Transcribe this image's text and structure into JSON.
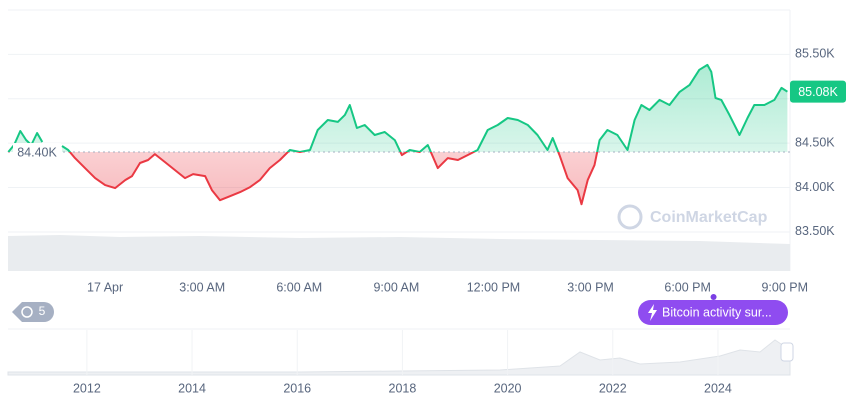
{
  "chart_data": {
    "type": "line",
    "x": [
      -2.99,
      -2.81,
      -2.62,
      -2.44,
      -2.28,
      -2.1,
      -1.94,
      -1.6,
      -1.33,
      -1.14,
      -0.93,
      -0.62,
      -0.31,
      0,
      0.31,
      0.62,
      0.83,
      1.08,
      1.33,
      1.54,
      1.85,
      2.16,
      2.47,
      2.72,
      3.09,
      3.3,
      3.55,
      3.86,
      4.17,
      4.48,
      4.78,
      5.09,
      5.4,
      5.71,
      6.02,
      6.33,
      6.57,
      6.88,
      7.19,
      7.41,
      7.56,
      7.78,
      8.02,
      8.33,
      8.64,
      8.95,
      9.17,
      9.41,
      9.72,
      9.97,
      10.28,
      10.59,
      10.9,
      11.2,
      11.51,
      11.82,
      12.13,
      12.44,
      12.75,
      13.06,
      13.36,
      13.67,
      13.83,
      14.04,
      14.29,
      14.6,
      14.72,
      14.91,
      15.12,
      15.28,
      15.52,
      15.83,
      16.14,
      16.36,
      16.57,
      16.82,
      17.13,
      17.44,
      17.75,
      18.06,
      18.36,
      18.61,
      18.73,
      18.86,
      19.04,
      19.29,
      19.6,
      19.85,
      20.06,
      20.37,
      20.68,
      20.9,
      21.08
    ],
    "values": [
      84.4,
      84.479,
      84.637,
      84.536,
      84.479,
      84.614,
      84.513,
      null,
      84.468,
      84.423,
      84.332,
      84.219,
      84.107,
      84.028,
      83.994,
      84.084,
      84.129,
      84.276,
      84.31,
      84.377,
      84.287,
      84.197,
      84.107,
      84.152,
      84.129,
      83.971,
      83.858,
      83.903,
      83.949,
      84.005,
      84.084,
      84.219,
      84.31,
      84.423,
      84.4,
      84.423,
      84.648,
      84.761,
      84.739,
      84.818,
      84.93,
      84.671,
      84.705,
      84.592,
      84.626,
      84.535,
      84.366,
      84.423,
      84.4,
      84.479,
      84.219,
      84.332,
      84.31,
      84.366,
      84.423,
      84.648,
      84.705,
      84.784,
      84.761,
      84.705,
      84.592,
      84.423,
      84.558,
      84.366,
      84.107,
      83.971,
      83.813,
      84.084,
      84.253,
      84.535,
      84.648,
      84.592,
      84.423,
      84.761,
      84.93,
      84.874,
      84.987,
      84.93,
      85.077,
      85.156,
      85.326,
      85.382,
      85.303,
      85.009,
      84.987,
      84.818,
      84.592,
      84.784,
      84.93,
      84.93,
      84.987,
      85.122,
      85.08
    ],
    "up_color": "#16c784",
    "down_color": "#ea3943",
    "xlim": [
      -3.0,
      21.1
    ],
    "xticks": [
      {
        "value": 0,
        "label": "17 Apr"
      },
      {
        "value": 3,
        "label": "3:00 AM"
      },
      {
        "value": 6,
        "label": "6:00 AM"
      },
      {
        "value": 9,
        "label": "9:00 AM"
      },
      {
        "value": 12,
        "label": "12:00 PM"
      },
      {
        "value": 15,
        "label": "3:00 PM"
      },
      {
        "value": 18,
        "label": "6:00 PM"
      },
      {
        "value": 21,
        "label": "9:00 PM"
      }
    ],
    "ylim": [
      83.06,
      86.0
    ],
    "yticks": [
      {
        "value": 83.5,
        "label": "83.50K"
      },
      {
        "value": 84.0,
        "label": "84.00K"
      },
      {
        "value": 84.5,
        "label": "84.50K"
      },
      {
        "value": 85.0,
        "label": "85.00K"
      },
      {
        "value": 85.5,
        "label": "85.50K"
      }
    ],
    "grid": true,
    "baseline": {
      "value": 84.4,
      "label": "84.40K"
    },
    "current_price": {
      "value": 85.08,
      "label": "85.08K"
    },
    "watermark": "CoinMarketCap",
    "event_count": "5",
    "annotation": {
      "x": 18.8,
      "label": "Bitcoin activity sur..."
    }
  },
  "navigator": {
    "xlim": [
      2010.5,
      2025.37
    ],
    "xticks": [
      2012,
      2014,
      2016,
      2018,
      2020,
      2022,
      2024
    ]
  }
}
